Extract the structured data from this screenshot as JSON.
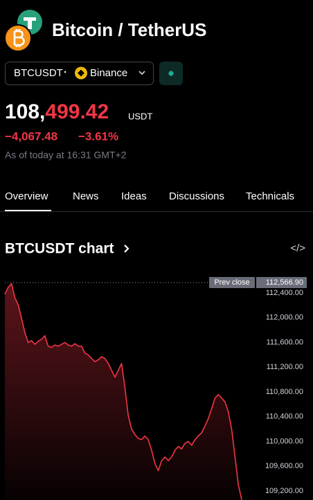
{
  "header": {
    "title": "Bitcoin / TetherUS",
    "symbol_button": {
      "symbol": "BTCUSDT",
      "separator": "·",
      "exchange": "Binance"
    }
  },
  "price": {
    "main": "108,",
    "highlight": "499.42",
    "currency": "USDT",
    "change": "−4,067.48",
    "change_percent": "−3.61%",
    "as_of": "As of today at 16:31 GMT+2"
  },
  "tabs": [
    "Overview",
    "News",
    "Ideas",
    "Discussions",
    "Technicals"
  ],
  "section": {
    "title": "BTCUSDT chart",
    "embed_icon": "</>"
  },
  "chart_data": {
    "type": "line",
    "grid": false,
    "ylim": [
      109055,
      112657
    ],
    "yticks": [
      {
        "value": 109200,
        "label": "109,200.00"
      },
      {
        "value": 109600,
        "label": "109,600.00"
      },
      {
        "value": 110000,
        "label": "110,000.00"
      },
      {
        "value": 110400,
        "label": "110,400.00"
      },
      {
        "value": 110800,
        "label": "110,800.00"
      },
      {
        "value": 111200,
        "label": "111,200.00"
      },
      {
        "value": 111600,
        "label": "111,600.00"
      },
      {
        "value": 112000,
        "label": "112,000.00"
      },
      {
        "value": 112400,
        "label": "112,400.00"
      }
    ],
    "prev_close": {
      "label": "Prev close",
      "value": 112566.9,
      "value_label": "112,566.90"
    },
    "series": [
      {
        "color": "#f23645",
        "values": [
          112380,
          112490,
          112550,
          112320,
          112210,
          111990,
          111760,
          111600,
          111630,
          111570,
          111620,
          111650,
          111710,
          111540,
          111520,
          111560,
          111540,
          111570,
          111600,
          111560,
          111540,
          111580,
          111540,
          111540,
          111430,
          111400,
          111340,
          111290,
          111320,
          111370,
          111340,
          111260,
          111150,
          111040,
          111150,
          111260,
          110870,
          110420,
          110200,
          110110,
          110050,
          110030,
          110090,
          110030,
          109860,
          109640,
          109530,
          109690,
          109750,
          109690,
          109750,
          109860,
          109920,
          109880,
          109970,
          110000,
          109940,
          110030,
          110090,
          110140,
          110250,
          110370,
          110530,
          110700,
          110760,
          110700,
          110640,
          110480,
          110200,
          109750,
          109300,
          109060
        ]
      }
    ]
  }
}
